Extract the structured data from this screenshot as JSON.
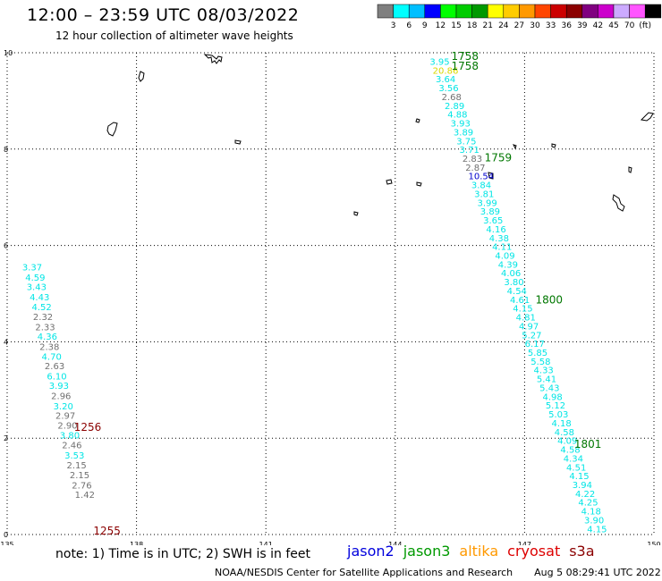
{
  "header": {
    "title": "12:00 – 23:59 UTC 08/03/2022",
    "subtitle": "12 hour collection of altimeter wave heights"
  },
  "color_scale": {
    "swatches": [
      "#7f7f7f",
      "#00ffff",
      "#00bfff",
      "#0000ff",
      "#00ff00",
      "#00cc00",
      "#009900",
      "#ffff00",
      "#ffcc00",
      "#ff9900",
      "#ff4500",
      "#cc0000",
      "#8b0000",
      "#800080",
      "#cc00cc",
      "#ccaaff",
      "#ff55ff",
      "#000000"
    ],
    "labels": [
      "3",
      "6",
      "9",
      "12",
      "15",
      "18",
      "21",
      "24",
      "27",
      "30",
      "33",
      "36",
      "39",
      "42",
      "45",
      "70",
      "(ft)"
    ]
  },
  "map": {
    "lon_min": 135,
    "lon_max": 150,
    "lat_min": 0,
    "lat_max": 10,
    "lon_ticks": [
      "135",
      "138",
      "141",
      "144",
      "147",
      "150"
    ],
    "lat_ticks": [
      "0",
      "2",
      "4",
      "6",
      "8",
      "10"
    ],
    "colors": {
      "cyan": "#00e5e5",
      "gray": "#707070",
      "yellow": "#d8d800",
      "blue": "#0000cc",
      "green": "#007700",
      "darkred": "#8b0000"
    }
  },
  "track_west": {
    "values": [
      "3.37",
      "4.59",
      "3.43",
      "4.43",
      "4.52",
      "2.32",
      "2.33",
      "4.36",
      "2.38",
      "4.70",
      "2.63",
      "6.10",
      "3.93",
      "2.96",
      "3.20",
      "2.97",
      "2.90",
      "3.80",
      "2.46",
      "3.53",
      "2.15",
      "2.15",
      "2.76",
      "1.42"
    ],
    "colors": [
      "cyan",
      "cyan",
      "cyan",
      "cyan",
      "cyan",
      "gray",
      "gray",
      "cyan",
      "gray",
      "cyan",
      "gray",
      "cyan",
      "cyan",
      "gray",
      "cyan",
      "gray",
      "gray",
      "cyan",
      "gray",
      "cyan",
      "gray",
      "gray",
      "gray",
      "gray"
    ],
    "lon": [
      135.35,
      135.42,
      135.45,
      135.52,
      135.57,
      135.6,
      135.65,
      135.7,
      135.75,
      135.8,
      135.87,
      135.92,
      135.97,
      136.02,
      136.07,
      136.12,
      136.17,
      136.22,
      136.27,
      136.33,
      136.38,
      136.45,
      136.5,
      136.57
    ],
    "lat": [
      5.48,
      5.27,
      5.07,
      4.86,
      4.66,
      4.45,
      4.24,
      4.04,
      3.83,
      3.63,
      3.43,
      3.22,
      3.02,
      2.81,
      2.6,
      2.4,
      2.2,
      1.99,
      1.79,
      1.58,
      1.37,
      1.17,
      0.96,
      0.76
    ]
  },
  "track_east": {
    "values": [
      "3.95",
      "20.86",
      "3.64",
      "3.56",
      "2.68",
      "2.89",
      "4.88",
      "3.93",
      "3.89",
      "3.75",
      "3.71",
      "2.83",
      "2.87",
      "10.54",
      "3.84",
      "3.81",
      "3.99",
      "3.89",
      "3.65",
      "4.16",
      "4.38",
      "4.11",
      "4.09",
      "4.39",
      "4.06",
      "3.80",
      "4.54",
      "4.61",
      "4.15",
      "4.81",
      "4.97",
      "5.27",
      "6.17",
      "5.85",
      "5.58",
      "4.33",
      "5.41",
      "5.43",
      "4.98",
      "5.12",
      "5.03",
      "4.18",
      "4.58",
      "4.09",
      "4.58",
      "4.34",
      "4.51",
      "4.15",
      "3.94",
      "4.22",
      "4.25",
      "4.18",
      "3.90",
      "4.15"
    ],
    "colors": [
      "cyan",
      "yellow",
      "cyan",
      "cyan",
      "gray",
      "cyan",
      "cyan",
      "cyan",
      "cyan",
      "cyan",
      "cyan",
      "gray",
      "gray",
      "blue",
      "cyan",
      "cyan",
      "cyan",
      "cyan",
      "cyan",
      "cyan",
      "cyan",
      "cyan",
      "cyan",
      "cyan",
      "cyan",
      "cyan",
      "cyan",
      "cyan",
      "cyan",
      "cyan",
      "cyan",
      "cyan",
      "cyan",
      "cyan",
      "cyan",
      "cyan",
      "cyan",
      "cyan",
      "cyan",
      "cyan",
      "cyan",
      "cyan",
      "cyan",
      "cyan",
      "cyan",
      "cyan",
      "cyan",
      "cyan",
      "cyan",
      "cyan",
      "cyan",
      "cyan",
      "cyan",
      "cyan"
    ],
    "lon_start": 144.8,
    "lon_end": 148.45,
    "lat_start": 9.75,
    "lat_end": 0.05
  },
  "time_labels": [
    {
      "text": "1758",
      "lon": 145.3,
      "lat": 9.85,
      "color": "green"
    },
    {
      "text": "1758",
      "lon": 145.3,
      "lat": 9.65,
      "color": "green"
    },
    {
      "text": "1759",
      "lon": 146.07,
      "lat": 7.75,
      "color": "green"
    },
    {
      "text": "1800",
      "lon": 147.25,
      "lat": 4.8,
      "color": "green"
    },
    {
      "text": "1801",
      "lon": 148.15,
      "lat": 1.8,
      "color": "green"
    },
    {
      "text": "1256",
      "lon": 136.55,
      "lat": 2.15,
      "color": "darkred"
    },
    {
      "text": "1255",
      "lon": 137.0,
      "lat": 0.0,
      "color": "darkred"
    }
  ],
  "footer": {
    "note": "note:  1) Time is in UTC;  2) SWH is in feet",
    "satellites": [
      {
        "name": "jason2",
        "color": "#0000dd"
      },
      {
        "name": "jason3",
        "color": "#009900"
      },
      {
        "name": "altika",
        "color": "#ff9900"
      },
      {
        "name": "cryosat",
        "color": "#dd0000"
      },
      {
        "name": "s3a",
        "color": "#8b0000"
      }
    ],
    "credit": "NOAA/NESDIS Center for Satellite Applications and Research",
    "timestamp": "Aug  5 08:29:41 UTC 2022"
  }
}
